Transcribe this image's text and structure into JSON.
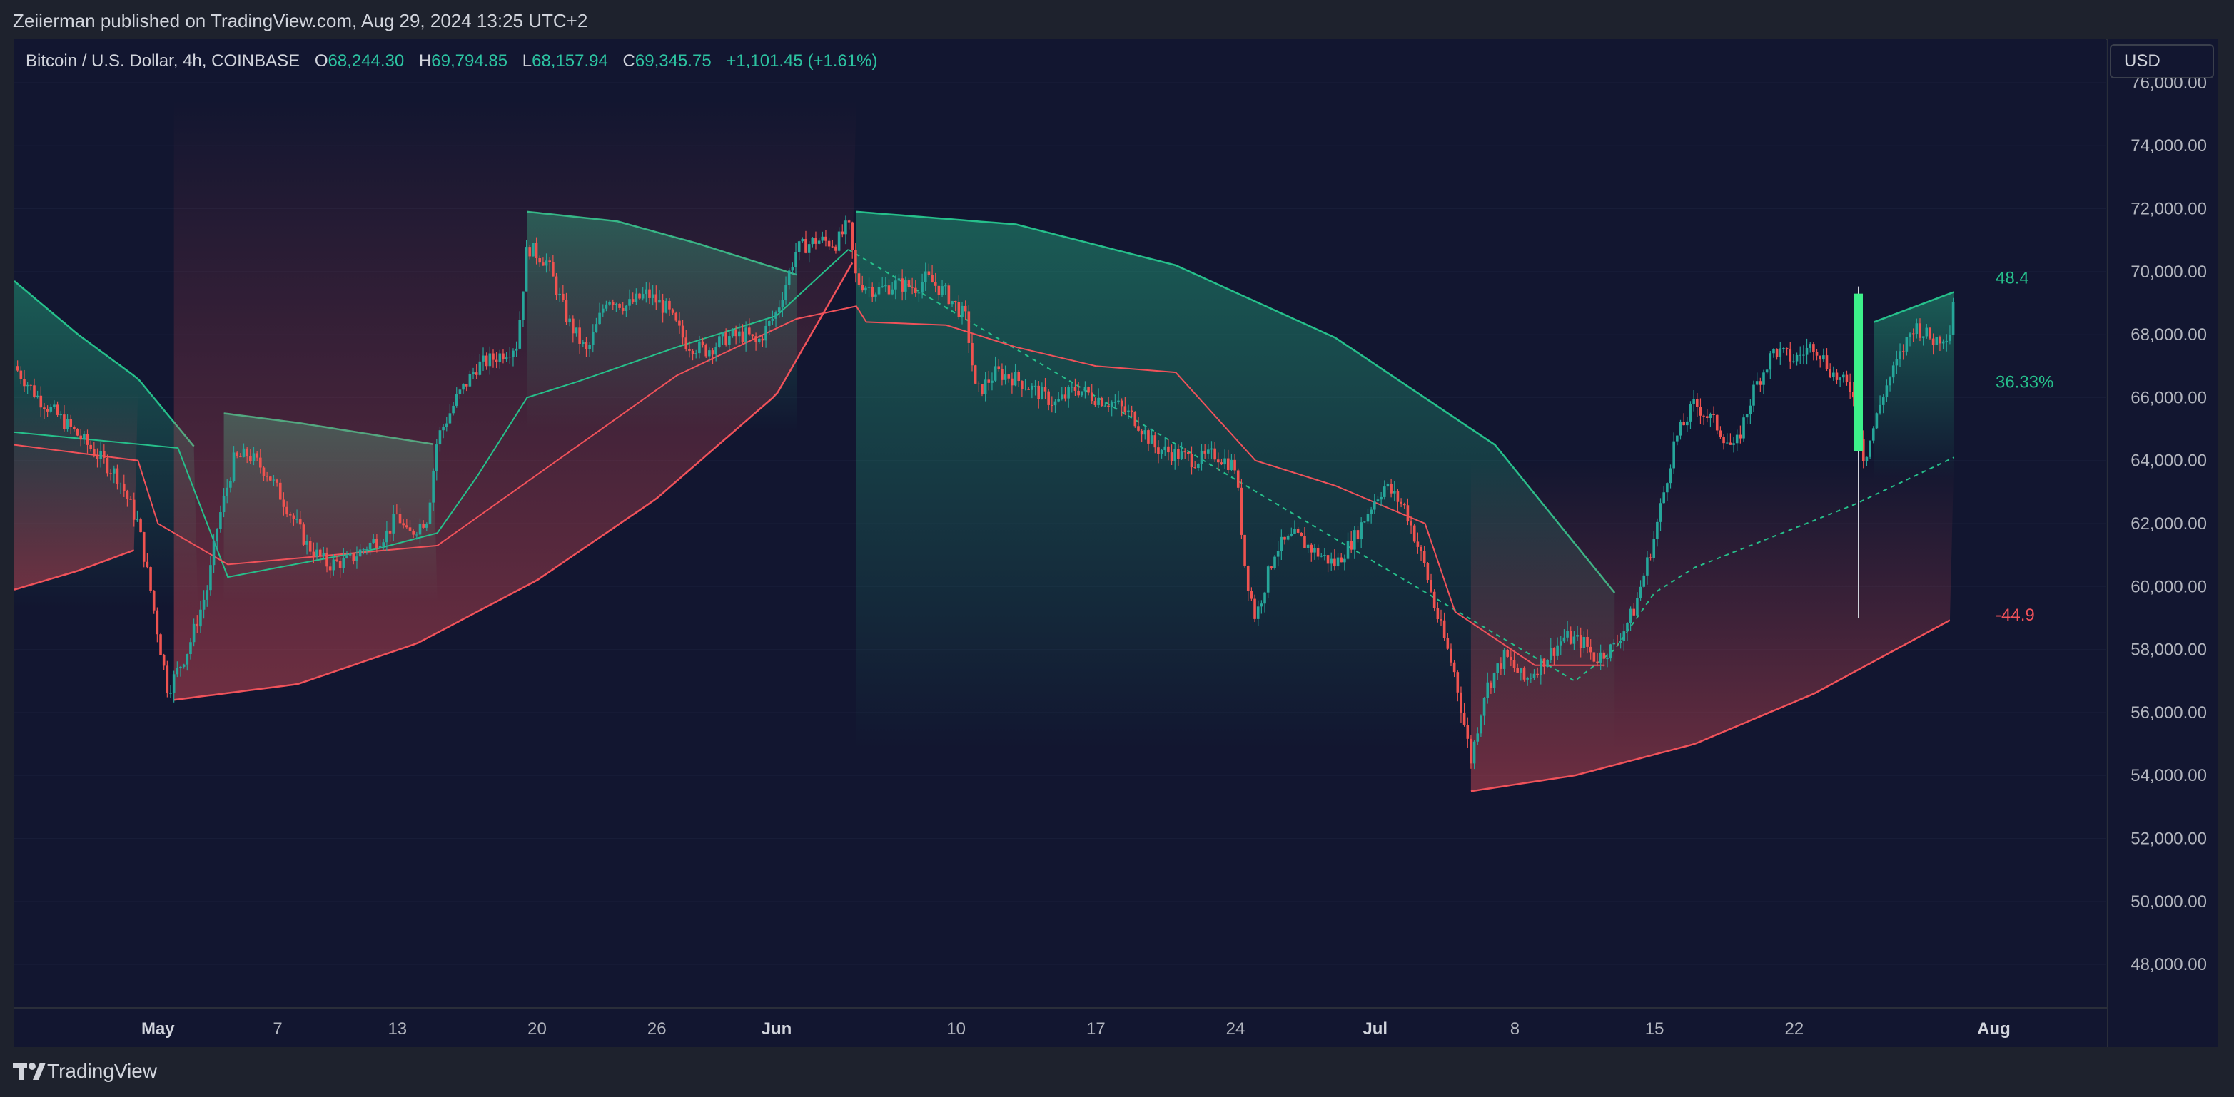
{
  "publisher": "Zeiierman published on TradingView.com, Aug 29, 2024 13:25 UTC+2",
  "symbol_line": "Bitcoin / U.S. Dollar, 4h, COINBASE",
  "ohlc": {
    "o_label": "O",
    "o": "68,244.30",
    "h_label": "H",
    "h": "69,794.85",
    "l_label": "L",
    "l": "68,157.94",
    "c_label": "C",
    "c": "69,345.75",
    "change": "+1,101.45 (+1.61%)"
  },
  "currency_button": "USD",
  "brand": "TradingView",
  "colors": {
    "background": "#121630",
    "bull": "#26c08b",
    "bear": "#f0525a",
    "up_candle": "#26a69a",
    "down_candle": "#ef5350",
    "accent_bar": "#3df08a"
  },
  "chart_data": {
    "type": "candlestick",
    "ylim": [
      46600,
      77400
    ],
    "y_ticks": [
      48000,
      50000,
      52000,
      54000,
      56000,
      58000,
      60000,
      62000,
      64000,
      66000,
      68000,
      70000,
      72000,
      74000,
      76000
    ],
    "y_tick_labels": [
      "48,000.00",
      "50,000.00",
      "52,000.00",
      "54,000.00",
      "56,000.00",
      "58,000.00",
      "60,000.00",
      "62,000.00",
      "64,000.00",
      "66,000.00",
      "68,000.00",
      "70,000.00",
      "72,000.00",
      "74,000.00",
      "76,000.00"
    ],
    "x_labels": [
      {
        "label": "May",
        "day": 1,
        "bold": true
      },
      {
        "label": "7",
        "day": 7
      },
      {
        "label": "13",
        "day": 13
      },
      {
        "label": "20",
        "day": 20
      },
      {
        "label": "26",
        "day": 26
      },
      {
        "label": "Jun",
        "day": 32,
        "bold": true
      },
      {
        "label": "10",
        "day": 41
      },
      {
        "label": "17",
        "day": 48
      },
      {
        "label": "24",
        "day": 55
      },
      {
        "label": "Jul",
        "day": 62,
        "bold": true
      },
      {
        "label": "8",
        "day": 69
      },
      {
        "label": "15",
        "day": 76
      },
      {
        "label": "22",
        "day": 83
      },
      {
        "label": "Aug",
        "day": 93,
        "bold": true
      }
    ],
    "xlim_days": [
      -6.2,
      98.6
    ],
    "price_path": [
      [
        -6.2,
        67000
      ],
      [
        -5,
        66000
      ],
      [
        -3,
        64800
      ],
      [
        -1,
        63500
      ],
      [
        0,
        62000
      ],
      [
        0.6,
        60000
      ],
      [
        1,
        58500
      ],
      [
        1.5,
        56700
      ],
      [
        2.5,
        58000
      ],
      [
        3.5,
        60000
      ],
      [
        4,
        62000
      ],
      [
        4.8,
        64000
      ],
      [
        5.5,
        64200
      ],
      [
        6.5,
        63600
      ],
      [
        7.5,
        62500
      ],
      [
        8.5,
        61300
      ],
      [
        9.5,
        60700
      ],
      [
        10.5,
        60800
      ],
      [
        11.5,
        61300
      ],
      [
        12.5,
        61700
      ],
      [
        13,
        62300
      ],
      [
        13.5,
        61600
      ],
      [
        14.5,
        62200
      ],
      [
        15,
        64700
      ],
      [
        16,
        66000
      ],
      [
        17,
        67000
      ],
      [
        18,
        67300
      ],
      [
        19,
        67700
      ],
      [
        19.5,
        70800
      ],
      [
        20.5,
        70300
      ],
      [
        21.5,
        68500
      ],
      [
        22.5,
        67400
      ],
      [
        23.5,
        69200
      ],
      [
        24.5,
        68900
      ],
      [
        25.5,
        69300
      ],
      [
        26.5,
        68800
      ],
      [
        27.5,
        67700
      ],
      [
        28.5,
        67500
      ],
      [
        29.5,
        67900
      ],
      [
        30.5,
        68000
      ],
      [
        31,
        67700
      ],
      [
        32,
        68700
      ],
      [
        33,
        70700
      ],
      [
        34,
        71000
      ],
      [
        35,
        70900
      ],
      [
        35.6,
        71500
      ],
      [
        36,
        69700
      ],
      [
        37,
        69400
      ],
      [
        38,
        69600
      ],
      [
        39,
        69500
      ],
      [
        39.5,
        69800
      ],
      [
        40.5,
        69300
      ],
      [
        41.5,
        68500
      ],
      [
        42,
        66100
      ],
      [
        43,
        66800
      ],
      [
        44,
        66600
      ],
      [
        45,
        66200
      ],
      [
        46,
        65800
      ],
      [
        47,
        66300
      ],
      [
        48,
        66000
      ],
      [
        49,
        65800
      ],
      [
        50,
        65300
      ],
      [
        51,
        64400
      ],
      [
        52,
        64200
      ],
      [
        53,
        64000
      ],
      [
        54,
        64200
      ],
      [
        55,
        63800
      ],
      [
        55.5,
        60500
      ],
      [
        56,
        59000
      ],
      [
        57,
        61200
      ],
      [
        58,
        61600
      ],
      [
        59,
        61100
      ],
      [
        60,
        60700
      ],
      [
        61,
        61600
      ],
      [
        62,
        62800
      ],
      [
        62.5,
        63200
      ],
      [
        63.5,
        62500
      ],
      [
        64.5,
        60600
      ],
      [
        65,
        59300
      ],
      [
        66,
        57200
      ],
      [
        66.8,
        54500
      ],
      [
        67.5,
        56700
      ],
      [
        68.5,
        57800
      ],
      [
        69.5,
        57000
      ],
      [
        70.5,
        57700
      ],
      [
        71.5,
        58400
      ],
      [
        72.5,
        58200
      ],
      [
        73,
        57700
      ],
      [
        74,
        58100
      ],
      [
        75,
        59300
      ],
      [
        76,
        61600
      ],
      [
        77,
        64600
      ],
      [
        78,
        65800
      ],
      [
        79,
        65200
      ],
      [
        80,
        64300
      ],
      [
        81,
        66300
      ],
      [
        82,
        67500
      ],
      [
        83,
        67200
      ],
      [
        84,
        67700
      ],
      [
        85,
        66700
      ],
      [
        86,
        66200
      ],
      [
        86.5,
        64000
      ],
      [
        87.5,
        66200
      ],
      [
        88.5,
        67600
      ],
      [
        89,
        68300
      ],
      [
        90,
        67800
      ],
      [
        90.8,
        68100
      ],
      [
        91,
        69350
      ]
    ],
    "upper_band_arcs": [
      [
        [
          -6.2,
          69700
        ],
        [
          -3,
          68000
        ],
        [
          0,
          66600
        ],
        [
          3,
          64300
        ]
      ],
      [
        [
          4.3,
          65500
        ],
        [
          8,
          65200
        ],
        [
          12,
          64800
        ],
        [
          15,
          64500
        ]
      ],
      [
        [
          19.5,
          71900
        ],
        [
          24,
          71600
        ],
        [
          28,
          70900
        ],
        [
          33,
          69900
        ]
      ],
      [
        [
          36,
          71900
        ],
        [
          44,
          71500
        ],
        [
          52,
          70200
        ],
        [
          60,
          67900
        ],
        [
          68,
          64500
        ],
        [
          74,
          59800
        ]
      ],
      [
        [
          87,
          68400
        ],
        [
          91,
          69350
        ]
      ]
    ],
    "lower_band_arcs": [
      [
        [
          -6.2,
          59900
        ],
        [
          -3,
          60500
        ],
        [
          0,
          61200
        ]
      ],
      [
        [
          1.8,
          56400
        ],
        [
          8,
          56900
        ],
        [
          14,
          58200
        ],
        [
          20,
          60200
        ],
        [
          26,
          62800
        ],
        [
          32,
          66100
        ],
        [
          36,
          70500
        ]
      ],
      [
        [
          66.8,
          53500
        ],
        [
          72,
          54000
        ],
        [
          78,
          55000
        ],
        [
          84,
          56600
        ],
        [
          91,
          59000
        ]
      ]
    ],
    "bull_trail": [
      [
        -6.2,
        64900
      ],
      [
        2,
        64400
      ],
      [
        4.5,
        60300
      ],
      [
        7,
        60600
      ],
      [
        12,
        61200
      ],
      [
        15,
        61700
      ],
      [
        17,
        63500
      ],
      [
        19.5,
        66000
      ],
      [
        22,
        66500
      ],
      [
        27,
        67600
      ],
      [
        32,
        68600
      ],
      [
        35.6,
        70700
      ],
      [
        72,
        57000
      ],
      [
        74,
        58000
      ],
      [
        76,
        59800
      ],
      [
        78,
        60600
      ],
      [
        82,
        61600
      ],
      [
        86,
        62600
      ],
      [
        89,
        63500
      ],
      [
        91,
        64100
      ]
    ],
    "bear_trail": [
      [
        -6.2,
        64500
      ],
      [
        0,
        64000
      ],
      [
        1,
        62000
      ],
      [
        4.5,
        60700
      ],
      [
        15,
        61300
      ],
      [
        27,
        66700
      ],
      [
        33,
        68500
      ],
      [
        36,
        68900
      ],
      [
        36.5,
        68400
      ],
      [
        40.5,
        68300
      ],
      [
        44,
        67600
      ],
      [
        48,
        67000
      ],
      [
        52,
        66800
      ],
      [
        56,
        64000
      ],
      [
        60,
        63200
      ],
      [
        64.5,
        62000
      ],
      [
        66,
        59200
      ],
      [
        70,
        57500
      ],
      [
        73.5,
        57500
      ]
    ],
    "accent_meter": {
      "high_label": "48.4",
      "pct_label": "36.33%",
      "low_label": "-44.9",
      "top": 69300,
      "mid": 64300,
      "bottom": 59000
    }
  }
}
